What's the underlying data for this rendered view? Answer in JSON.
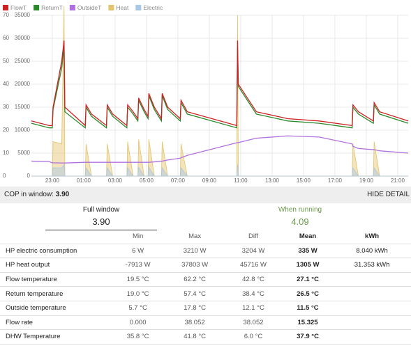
{
  "chart_data": {
    "type": "line",
    "x": [
      21.67,
      22.8,
      23.0,
      23.05,
      23.6,
      23.75,
      23.8,
      25.1,
      25.15,
      25.5,
      26.45,
      26.5,
      26.85,
      27.75,
      27.8,
      28.15,
      28.45,
      28.5,
      28.85,
      29.1,
      29.15,
      29.5,
      29.95,
      30.0,
      30.35,
      31.15,
      31.2,
      31.6,
      34.75,
      34.8,
      34.85,
      36,
      38,
      40,
      42.1,
      42.15,
      42.5,
      43.45,
      43.5,
      43.85,
      45.67
    ],
    "series": [
      {
        "name": "FlowT",
        "color": "#cc2222",
        "axis": "y",
        "values": [
          24,
          22,
          22,
          30,
          50,
          59,
          30,
          22,
          31,
          27,
          22,
          31,
          27,
          22,
          31,
          28,
          25,
          34,
          29,
          26,
          36,
          30,
          25,
          36,
          30,
          25,
          33,
          28,
          22,
          59,
          40,
          28,
          25,
          24,
          22,
          31,
          28,
          24,
          32,
          28,
          24
        ]
      },
      {
        "name": "ReturnT",
        "color": "#2a8a2a",
        "axis": "y",
        "values": [
          23,
          21,
          21,
          29,
          47,
          56,
          28,
          21,
          30,
          26,
          21,
          30,
          26,
          21,
          30,
          27,
          24,
          33,
          28,
          25,
          35,
          29,
          24,
          35,
          29,
          24,
          32,
          27,
          21,
          56,
          39,
          27,
          24,
          23,
          21,
          30,
          27,
          23,
          31,
          27,
          23
        ]
      },
      {
        "name": "OutsideT",
        "color": "#b070e0",
        "axis": "y",
        "values": [
          6.5,
          6.3,
          5.8,
          5.8,
          5.7,
          5.7,
          5.7,
          6,
          6,
          6,
          6,
          6,
          6,
          6,
          6,
          6,
          6,
          6,
          6,
          6,
          6,
          6.2,
          6.5,
          6.5,
          7,
          7.8,
          8,
          9,
          14.5,
          14.5,
          14.6,
          16.5,
          17.5,
          17,
          14,
          13,
          12,
          11.5,
          11.5,
          11,
          10
        ]
      },
      {
        "name": "Heat",
        "color": "#e5c36a",
        "axis": "y2",
        "values": [
          0,
          0,
          0,
          7500,
          7000,
          37000,
          0,
          0,
          7000,
          0,
          0,
          7000,
          0,
          0,
          7500,
          0,
          0,
          8000,
          0,
          0,
          8000,
          0,
          0,
          7500,
          0,
          0,
          7000,
          0,
          0,
          35000,
          0,
          0,
          0,
          0,
          0,
          7000,
          0,
          0,
          7500,
          0,
          0
        ]
      },
      {
        "name": "Electric",
        "color": "#a8c8e8",
        "axis": "y2",
        "values": [
          0,
          0,
          0,
          1800,
          1800,
          2500,
          0,
          0,
          1800,
          0,
          0,
          1800,
          0,
          0,
          1800,
          0,
          0,
          1900,
          0,
          0,
          1900,
          0,
          0,
          1800,
          0,
          0,
          1800,
          0,
          0,
          2500,
          0,
          0,
          0,
          0,
          0,
          1800,
          0,
          0,
          1800,
          0,
          0
        ]
      }
    ],
    "xlim": [
      21.67,
      45.67
    ],
    "xticks": [
      {
        "value": 23,
        "label": "23:00"
      },
      {
        "value": 25,
        "label": "01:00"
      },
      {
        "value": 27,
        "label": "03:00"
      },
      {
        "value": 29,
        "label": "05:00"
      },
      {
        "value": 31,
        "label": "07:00"
      },
      {
        "value": 33,
        "label": "09:00"
      },
      {
        "value": 35,
        "label": "11:00"
      },
      {
        "value": 37,
        "label": "13:00"
      },
      {
        "value": 39,
        "label": "15:00"
      },
      {
        "value": 41,
        "label": "17:00"
      },
      {
        "value": 43,
        "label": "19:00"
      },
      {
        "value": 45,
        "label": "21:00"
      }
    ],
    "ylim": [
      0,
      70
    ],
    "yticks": [
      0,
      10,
      20,
      30,
      40,
      50,
      60,
      70
    ],
    "y2lim": [
      0,
      35000
    ],
    "y2ticks": [
      0,
      5000,
      10000,
      15000,
      20000,
      25000,
      30000,
      35000
    ],
    "grid": true
  },
  "cop_bar": {
    "label": "COP in window:",
    "value": "3.90",
    "toggle": "HIDE DETAIL"
  },
  "summary": {
    "full_caption": "Full window",
    "full_value": "3.90",
    "running_caption": "When running",
    "running_value": "4.09"
  },
  "table": {
    "header": [
      "Min",
      "Max",
      "Diff",
      "Mean",
      "kWh"
    ],
    "rows": [
      [
        "HP electric consumption",
        "6 W",
        "3210 W",
        "3204 W",
        "335 W",
        "8.040 kWh"
      ],
      [
        "HP heat output",
        "-7913 W",
        "37803 W",
        "45716 W",
        "1305 W",
        "31.353 kWh"
      ],
      [
        "Flow temperature",
        "19.5 °C",
        "62.2 °C",
        "42.8 °C",
        "27.1 °C"
      ],
      [
        "Return temperature",
        "19.0 °C",
        "57.4 °C",
        "38.4 °C",
        "26.5 °C"
      ],
      [
        "Outside temperature",
        "5.7 °C",
        "17.8 °C",
        "12.1 °C",
        "11.5 °C"
      ],
      [
        "Flow rate",
        "0.000",
        "38.052",
        "38.052",
        "15.325"
      ],
      [
        "DHW Temperature",
        "35.8 °C",
        "41.8 °C",
        "6.0 °C",
        "37.9 °C"
      ]
    ]
  }
}
